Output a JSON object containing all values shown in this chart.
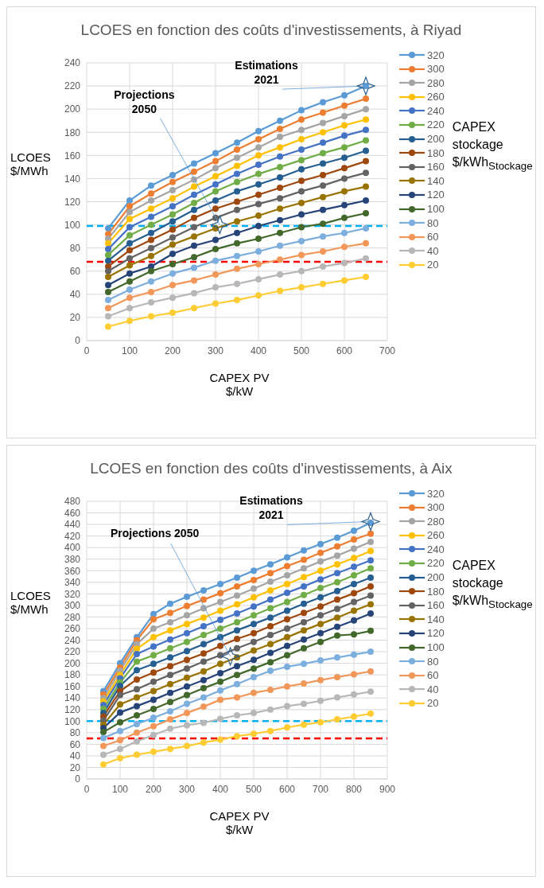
{
  "chart_data": [
    {
      "type": "line",
      "title": "LCOES en fonction des coûts d'investissements, à Riyad",
      "xlabel": "CAPEX PV\n$/kW",
      "ylabel": "LCOES\n$/MWh",
      "legend_title": "CAPEX\nstockage\n$/kWh$_{Stockage}$",
      "legend": "right",
      "grid": true,
      "marker": "circle",
      "line_style": "solid",
      "x": [
        50,
        100,
        150,
        200,
        250,
        300,
        350,
        400,
        450,
        500,
        550,
        600,
        650
      ],
      "xlim": [
        0,
        700
      ],
      "xticks": [
        0,
        100,
        200,
        300,
        400,
        500,
        600,
        700
      ],
      "ylim": [
        0,
        240
      ],
      "yticks": [
        0,
        20,
        40,
        60,
        80,
        100,
        120,
        140,
        160,
        180,
        200,
        220,
        240
      ],
      "ref_lines": [
        {
          "axis": "y",
          "value": 99,
          "color": "#00b0f0",
          "line_style": "dashed"
        },
        {
          "axis": "y",
          "value": 68,
          "color": "#ff0000",
          "line_style": "dashed"
        }
      ],
      "annotations": [
        {
          "text": "Estimations\n2021",
          "x": 650,
          "y": 220
        },
        {
          "text": "Projections\n2050",
          "x": 310,
          "y": 100
        }
      ],
      "series": [
        {
          "name": "320",
          "color": "#5b9bd5",
          "values": [
            97,
            121,
            134,
            143,
            153,
            162,
            171,
            181,
            190,
            199,
            206,
            212,
            220
          ]
        },
        {
          "name": "300",
          "color": "#ed7d31",
          "values": [
            92,
            116,
            127,
            137,
            146,
            155,
            165,
            174,
            183,
            191,
            197,
            203,
            209
          ]
        },
        {
          "name": "280",
          "color": "#a5a5a5",
          "values": [
            88,
            111,
            121,
            130,
            139,
            149,
            158,
            167,
            176,
            182,
            188,
            194,
            200
          ]
        },
        {
          "name": "260",
          "color": "#ffc000",
          "values": [
            84,
            105,
            114,
            123,
            133,
            142,
            151,
            160,
            167,
            174,
            180,
            186,
            191
          ]
        },
        {
          "name": "240",
          "color": "#4472c4",
          "values": [
            79,
            98,
            107,
            116,
            126,
            135,
            144,
            152,
            159,
            165,
            171,
            177,
            182
          ]
        },
        {
          "name": "220",
          "color": "#70ad47",
          "values": [
            74,
            91,
            100,
            109,
            119,
            129,
            137,
            144,
            150,
            156,
            162,
            167,
            173
          ]
        },
        {
          "name": "200",
          "color": "#255e91",
          "values": [
            69,
            84,
            93,
            103,
            113,
            121,
            129,
            135,
            141,
            148,
            153,
            158,
            164
          ]
        },
        {
          "name": "180",
          "color": "#9e480e",
          "values": [
            64,
            78,
            87,
            96,
            106,
            114,
            120,
            126,
            132,
            138,
            143,
            149,
            155
          ]
        },
        {
          "name": "160",
          "color": "#636363",
          "values": [
            60,
            71,
            80,
            89,
            98,
            106,
            113,
            118,
            123,
            129,
            134,
            140,
            145
          ]
        },
        {
          "name": "140",
          "color": "#997300",
          "values": [
            55,
            65,
            73,
            83,
            90,
            97,
            103,
            108,
            114,
            119,
            124,
            129,
            133
          ]
        },
        {
          "name": "120",
          "color": "#264478",
          "values": [
            48,
            58,
            64,
            75,
            82,
            87,
            93,
            99,
            104,
            109,
            113,
            117,
            121
          ]
        },
        {
          "name": "100",
          "color": "#43682b",
          "values": [
            42,
            51,
            60,
            66,
            72,
            79,
            84,
            88,
            93,
            98,
            101,
            106,
            110
          ]
        },
        {
          "name": "80",
          "color": "#7cafdd",
          "values": [
            35,
            44,
            51,
            58,
            63,
            69,
            73,
            77,
            82,
            86,
            90,
            93,
            97
          ]
        },
        {
          "name": "60",
          "color": "#f1975a",
          "values": [
            28,
            37,
            42,
            48,
            52,
            57,
            62,
            66,
            70,
            74,
            77,
            81,
            84
          ]
        },
        {
          "name": "40",
          "color": "#b7b7b7",
          "values": [
            21,
            28,
            33,
            37,
            41,
            46,
            49,
            53,
            57,
            60,
            64,
            67,
            71
          ]
        },
        {
          "name": "20",
          "color": "#ffcd33",
          "values": [
            12,
            17,
            21,
            24,
            28,
            32,
            35,
            39,
            43,
            46,
            49,
            52,
            55
          ]
        }
      ]
    },
    {
      "type": "line",
      "title": "LCOES en fonction des coûts d'investissements, à Aix",
      "xlabel": "CAPEX PV\n$/kW",
      "ylabel": "LCOES\n$/MWh",
      "legend_title": "CAPEX\nstockage\n$/kWh$_{Stockage}$",
      "legend": "right",
      "grid": true,
      "marker": "circle",
      "line_style": "solid",
      "x": [
        50,
        100,
        150,
        200,
        250,
        300,
        350,
        400,
        450,
        500,
        550,
        600,
        650,
        700,
        750,
        800,
        850
      ],
      "xlim": [
        0,
        900
      ],
      "xticks": [
        0,
        100,
        200,
        300,
        400,
        500,
        600,
        700,
        800,
        900
      ],
      "ylim": [
        0,
        480
      ],
      "yticks": [
        0,
        20,
        40,
        60,
        80,
        100,
        120,
        140,
        160,
        180,
        200,
        220,
        240,
        260,
        280,
        300,
        320,
        340,
        360,
        380,
        400,
        420,
        440,
        460,
        480
      ],
      "ref_lines": [
        {
          "axis": "y",
          "value": 100,
          "color": "#00b0f0",
          "line_style": "dashed"
        },
        {
          "axis": "y",
          "value": 70,
          "color": "#ff0000",
          "line_style": "dashed"
        }
      ],
      "annotations": [
        {
          "text": "Estimations\n2021",
          "x": 850,
          "y": 445
        },
        {
          "text": "Projections 2050",
          "x": 430,
          "y": 212
        }
      ],
      "series": [
        {
          "name": "320",
          "color": "#5b9bd5",
          "values": [
            152,
            200,
            245,
            285,
            303,
            315,
            326,
            337,
            348,
            360,
            371,
            383,
            395,
            406,
            417,
            429,
            443
          ]
        },
        {
          "name": "300",
          "color": "#ed7d31",
          "values": [
            146,
            193,
            240,
            276,
            287,
            299,
            310,
            321,
            333,
            344,
            356,
            368,
            379,
            391,
            402,
            414,
            424
          ]
        },
        {
          "name": "280",
          "color": "#a5a5a5",
          "values": [
            140,
            187,
            233,
            260,
            271,
            283,
            295,
            306,
            317,
            329,
            341,
            352,
            364,
            376,
            386,
            398,
            410
          ]
        },
        {
          "name": "260",
          "color": "#ffc000",
          "values": [
            134,
            180,
            225,
            245,
            257,
            268,
            279,
            291,
            302,
            314,
            326,
            337,
            349,
            360,
            371,
            382,
            394
          ]
        },
        {
          "name": "240",
          "color": "#4472c4",
          "values": [
            128,
            174,
            216,
            229,
            241,
            252,
            264,
            275,
            286,
            298,
            310,
            322,
            333,
            345,
            356,
            367,
            378
          ]
        },
        {
          "name": "220",
          "color": "#70ad47",
          "values": [
            121,
            167,
            203,
            214,
            226,
            237,
            249,
            260,
            271,
            283,
            295,
            306,
            318,
            330,
            340,
            352,
            364
          ]
        },
        {
          "name": "200",
          "color": "#255e91",
          "values": [
            114,
            161,
            188,
            199,
            210,
            221,
            233,
            245,
            257,
            268,
            279,
            291,
            303,
            314,
            325,
            337,
            348
          ]
        },
        {
          "name": "180",
          "color": "#9e480e",
          "values": [
            108,
            152,
            172,
            184,
            195,
            206,
            217,
            230,
            242,
            252,
            264,
            276,
            287,
            298,
            310,
            321,
            333
          ]
        },
        {
          "name": "160",
          "color": "#636363",
          "values": [
            101,
            145,
            155,
            168,
            180,
            191,
            203,
            214,
            226,
            237,
            249,
            260,
            271,
            283,
            294,
            306,
            317
          ]
        },
        {
          "name": "140",
          "color": "#997300",
          "values": [
            94,
            129,
            141,
            152,
            164,
            175,
            186,
            199,
            210,
            222,
            233,
            245,
            257,
            268,
            279,
            291,
            302
          ]
        },
        {
          "name": "120",
          "color": "#264478",
          "values": [
            88,
            115,
            126,
            137,
            149,
            160,
            171,
            183,
            195,
            206,
            218,
            230,
            241,
            252,
            263,
            274,
            286
          ]
        },
        {
          "name": "100",
          "color": "#43682b",
          "values": [
            81,
            98,
            110,
            121,
            133,
            145,
            157,
            168,
            180,
            191,
            202,
            214,
            226,
            237,
            248,
            250,
            256
          ]
        },
        {
          "name": "80",
          "color": "#7cafdd",
          "values": [
            71,
            83,
            95,
            106,
            117,
            130,
            141,
            153,
            164,
            176,
            187,
            194,
            199,
            205,
            210,
            215,
            220
          ]
        },
        {
          "name": "60",
          "color": "#f1975a",
          "values": [
            57,
            67,
            80,
            91,
            103,
            114,
            125,
            137,
            141,
            149,
            154,
            160,
            165,
            171,
            176,
            181,
            186
          ]
        },
        {
          "name": "40",
          "color": "#b7b7b7",
          "values": [
            42,
            52,
            65,
            76,
            87,
            93,
            97,
            104,
            110,
            114,
            120,
            126,
            130,
            135,
            141,
            146,
            151
          ]
        },
        {
          "name": "20",
          "color": "#ffcd33",
          "values": [
            25,
            36,
            42,
            47,
            52,
            57,
            63,
            68,
            74,
            78,
            83,
            89,
            94,
            98,
            103,
            108,
            113
          ]
        }
      ]
    }
  ]
}
